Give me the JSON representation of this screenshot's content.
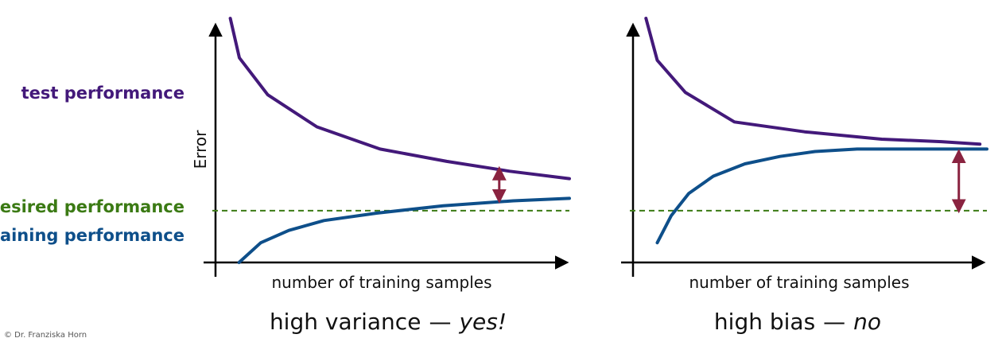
{
  "credit": "© Dr. Franziska Horn",
  "labels": {
    "test": "test performance",
    "desired": "desired performance",
    "training": "training performance"
  },
  "colors": {
    "test": "#43197a",
    "training": "#0e4f8a",
    "desired": "#3b7a14",
    "gap_arrow": "#8a2340",
    "axis": "#000000"
  },
  "chart_data": [
    {
      "type": "line",
      "title": "",
      "xlabel": "number of training samples",
      "ylabel": "Error",
      "caption_main": "high variance",
      "caption_dash": "—",
      "caption_answer": "yes!",
      "xlim": [
        0,
        10
      ],
      "ylim": [
        0,
        10
      ],
      "grid": false,
      "series": [
        {
          "key": "test",
          "x": [
            0.33,
            0.59,
            1.4,
            2.8,
            4.6,
            6.5,
            8.3,
            10.0
          ],
          "y": [
            9.9,
            8.3,
            6.8,
            5.5,
            4.6,
            4.1,
            3.7,
            3.4
          ]
        },
        {
          "key": "training",
          "x": [
            0.58,
            1.2,
            2.0,
            3.0,
            4.5,
            6.4,
            8.4,
            10.0
          ],
          "y": [
            0.0,
            0.8,
            1.3,
            1.7,
            2.0,
            2.3,
            2.5,
            2.6
          ]
        }
      ],
      "desired_level": 2.1,
      "gap_arrow": {
        "x": 8.0,
        "y_from": 2.5,
        "y_to": 3.8
      }
    },
    {
      "type": "line",
      "title": "",
      "xlabel": "number of training samples",
      "ylabel": "",
      "caption_main": "high bias",
      "caption_dash": "—",
      "caption_answer": "no",
      "xlim": [
        0,
        10
      ],
      "ylim": [
        0,
        10
      ],
      "grid": false,
      "series": [
        {
          "key": "test",
          "x": [
            0.28,
            0.6,
            1.4,
            2.8,
            4.8,
            7.0,
            8.7,
            9.8
          ],
          "y": [
            9.9,
            8.2,
            6.9,
            5.7,
            5.3,
            5.0,
            4.9,
            4.8
          ]
        },
        {
          "key": "training",
          "x": [
            0.6,
            1.0,
            1.5,
            2.2,
            3.1,
            4.1,
            5.1,
            6.3,
            10.0
          ],
          "y": [
            0.8,
            1.9,
            2.8,
            3.5,
            4.0,
            4.3,
            4.5,
            4.6,
            4.6
          ]
        }
      ],
      "desired_level": 2.1,
      "gap_arrow": {
        "x": 9.2,
        "y_from": 2.1,
        "y_to": 4.5
      }
    }
  ]
}
